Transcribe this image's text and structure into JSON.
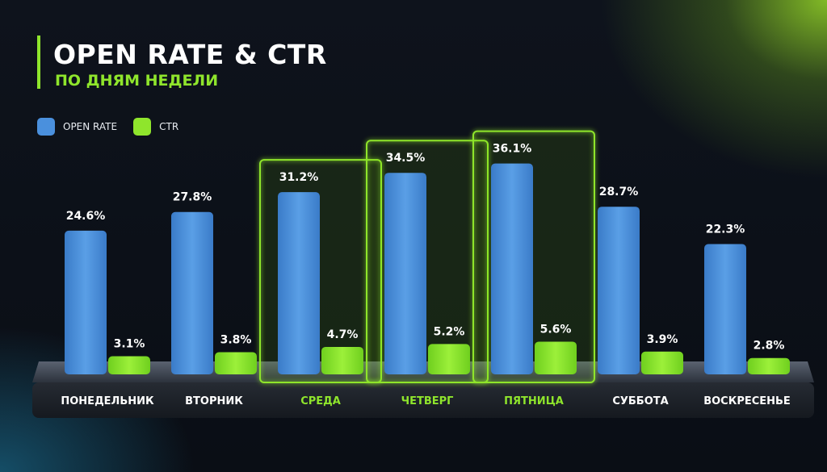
{
  "title": "OPEN RATE & CTR",
  "subtitle": "ПО ДНЯМ НЕДЕЛИ",
  "colors": {
    "open_rate": "#4a90dd",
    "ctr": "#8fe52c",
    "highlight": "#8fe52c",
    "background": "#0b0f16"
  },
  "legend": [
    {
      "label": "OPEN RATE",
      "color": "#4a90dd"
    },
    {
      "label": "CTR",
      "color": "#8fe52c"
    }
  ],
  "chart_data": {
    "type": "bar",
    "title": "OPEN RATE & CTR",
    "subtitle": "ПО ДНЯМ НЕДЕЛИ",
    "categories": [
      "ПОНЕДЕЛЬНИК",
      "ВТОРНИК",
      "СРЕДА",
      "ЧЕТВЕРГ",
      "ПЯТНИЦА",
      "СУББОТА",
      "ВОСКРЕСЕНЬЕ"
    ],
    "series": [
      {
        "name": "OPEN RATE",
        "values": [
          24.6,
          27.8,
          31.2,
          34.5,
          36.1,
          28.7,
          22.3
        ],
        "labels": [
          "24.6%",
          "27.8%",
          "31.2%",
          "34.5%",
          "36.1%",
          "28.7%",
          "22.3%"
        ]
      },
      {
        "name": "CTR",
        "values": [
          3.1,
          3.8,
          4.7,
          5.2,
          5.6,
          3.9,
          2.8
        ],
        "labels": [
          "3.1%",
          "3.8%",
          "4.7%",
          "5.2%",
          "5.6%",
          "3.9%",
          "2.8%"
        ]
      }
    ],
    "highlighted_categories": [
      "СРЕДА",
      "ЧЕТВЕРГ",
      "ПЯТНИЦА"
    ],
    "legend_position": "top-left",
    "grid": false
  }
}
